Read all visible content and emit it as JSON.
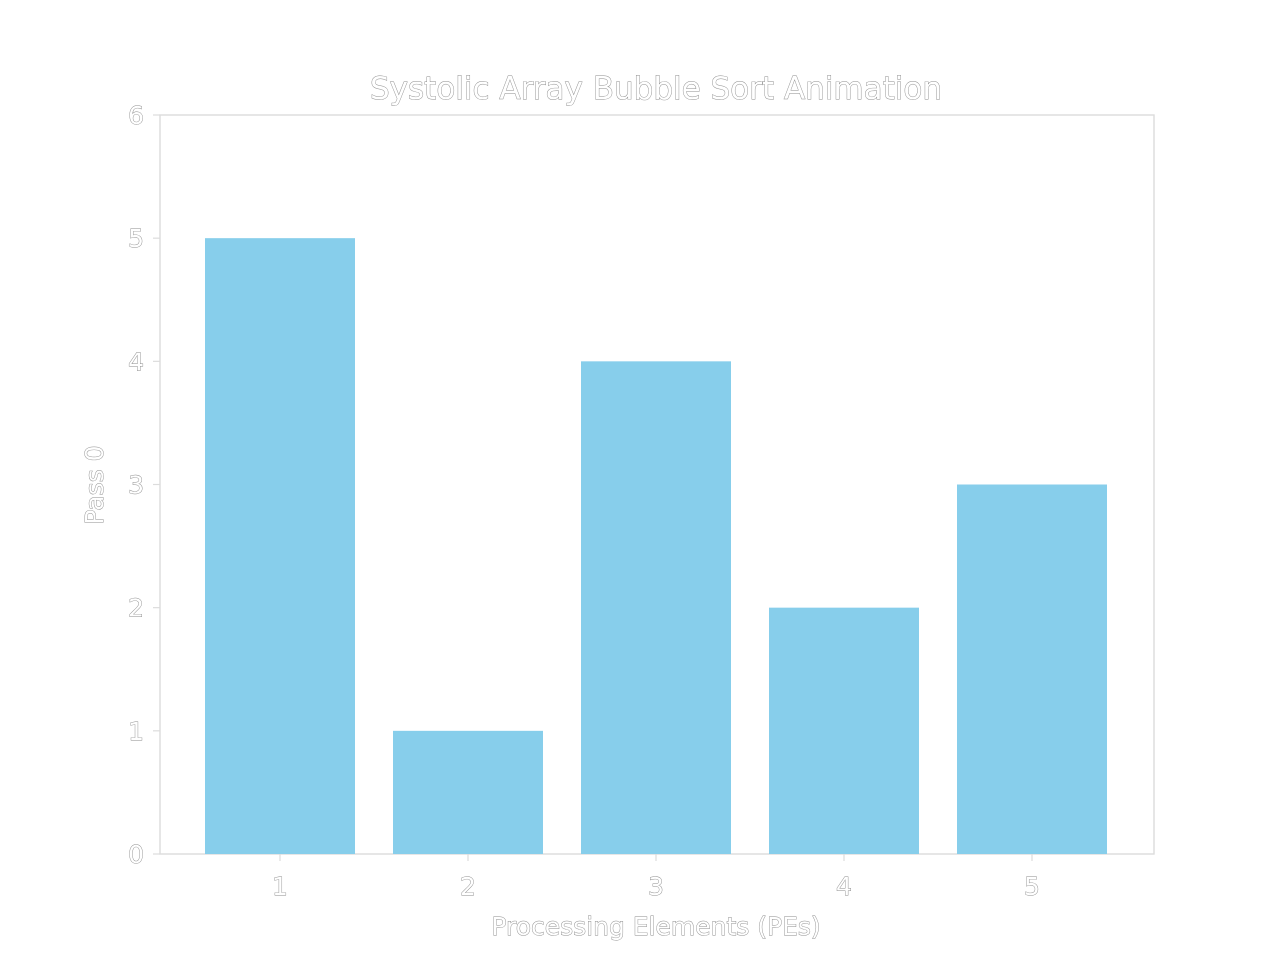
{
  "chart_data": {
    "type": "bar",
    "title": "Systolic Array Bubble Sort Animation",
    "xlabel": "Processing Elements (PEs)",
    "ylabel": "Pass 0",
    "categories": [
      "1",
      "2",
      "3",
      "4",
      "5"
    ],
    "values": [
      5,
      1,
      4,
      2,
      3
    ],
    "ylim": [
      0,
      6
    ],
    "yticks": [
      "0",
      "1",
      "2",
      "3",
      "4",
      "5",
      "6"
    ],
    "bar_color": "#87CEEB",
    "grid": false,
    "legend": "none"
  }
}
